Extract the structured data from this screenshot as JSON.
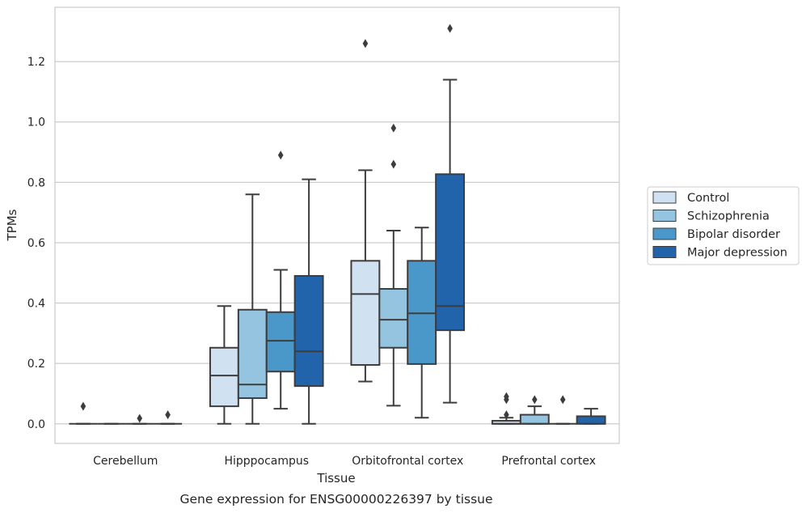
{
  "chart_data": {
    "type": "boxplot",
    "title": "",
    "caption": "Gene expression for ENSG00000226397 by tissue",
    "xlabel": "Tissue",
    "ylabel": "TPMs",
    "ylim": [
      -0.065,
      1.38
    ],
    "yticks": [
      0.0,
      0.2,
      0.4,
      0.6,
      0.8,
      1.0,
      1.2
    ],
    "ytick_labels": [
      "0.0",
      "0.2",
      "0.4",
      "0.6",
      "0.8",
      "1.0",
      "1.2"
    ],
    "grid": "horizontal",
    "legend_position": "right",
    "categories": [
      "Cerebellum",
      "Hipppocampus",
      "Orbitofrontal cortex",
      "Prefrontal cortex"
    ],
    "series": [
      {
        "name": "Control",
        "color": "#d0e1f2",
        "boxes": [
          {
            "whislo": 0.0,
            "q1": 0.0,
            "med": 0.0,
            "q3": 0.0,
            "whishi": 0.0,
            "fliers": [
              0.058
            ]
          },
          {
            "whislo": 0.0,
            "q1": 0.058,
            "med": 0.16,
            "q3": 0.252,
            "whishi": 0.39,
            "fliers": []
          },
          {
            "whislo": 0.14,
            "q1": 0.195,
            "med": 0.43,
            "q3": 0.54,
            "whishi": 0.84,
            "fliers": [
              1.26
            ]
          },
          {
            "whislo": 0.0,
            "q1": 0.0,
            "med": 0.0,
            "q3": 0.01,
            "whishi": 0.02,
            "fliers": [
              0.03,
              0.08,
              0.09
            ]
          }
        ]
      },
      {
        "name": "Schizophrenia",
        "color": "#94c4df",
        "boxes": [
          {
            "whislo": 0.0,
            "q1": 0.0,
            "med": 0.0,
            "q3": 0.0,
            "whishi": 0.0,
            "fliers": []
          },
          {
            "whislo": 0.0,
            "q1": 0.085,
            "med": 0.13,
            "q3": 0.378,
            "whishi": 0.76,
            "fliers": []
          },
          {
            "whislo": 0.06,
            "q1": 0.252,
            "med": 0.345,
            "q3": 0.447,
            "whishi": 0.64,
            "fliers": [
              0.86,
              0.98
            ]
          },
          {
            "whislo": 0.0,
            "q1": 0.0,
            "med": 0.0,
            "q3": 0.03,
            "whishi": 0.058,
            "fliers": [
              0.08
            ]
          }
        ]
      },
      {
        "name": "Bipolar disorder",
        "color": "#4a98c9",
        "boxes": [
          {
            "whislo": 0.0,
            "q1": 0.0,
            "med": 0.0,
            "q3": 0.0,
            "whishi": 0.0,
            "fliers": [
              0.018
            ]
          },
          {
            "whislo": 0.05,
            "q1": 0.173,
            "med": 0.275,
            "q3": 0.37,
            "whishi": 0.51,
            "fliers": [
              0.89
            ]
          },
          {
            "whislo": 0.02,
            "q1": 0.198,
            "med": 0.366,
            "q3": 0.54,
            "whishi": 0.65,
            "fliers": []
          },
          {
            "whislo": 0.0,
            "q1": 0.0,
            "med": 0.0,
            "q3": 0.0,
            "whishi": 0.0,
            "fliers": [
              0.08
            ]
          }
        ]
      },
      {
        "name": "Major depression",
        "color": "#2164ab",
        "boxes": [
          {
            "whislo": 0.0,
            "q1": 0.0,
            "med": 0.0,
            "q3": 0.0,
            "whishi": 0.0,
            "fliers": [
              0.03
            ]
          },
          {
            "whislo": 0.0,
            "q1": 0.125,
            "med": 0.24,
            "q3": 0.49,
            "whishi": 0.81,
            "fliers": []
          },
          {
            "whislo": 0.07,
            "q1": 0.31,
            "med": 0.39,
            "q3": 0.827,
            "whishi": 1.14,
            "fliers": [
              1.31
            ]
          },
          {
            "whislo": 0.0,
            "q1": 0.0,
            "med": 0.0,
            "q3": 0.025,
            "whishi": 0.05,
            "fliers": []
          }
        ]
      }
    ]
  }
}
